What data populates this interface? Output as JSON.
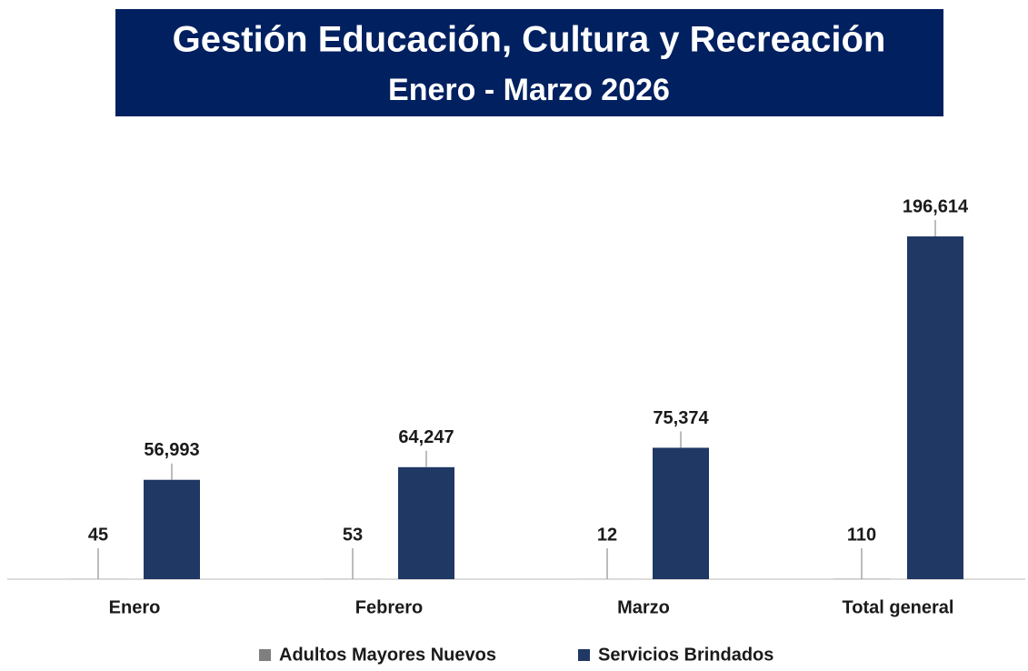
{
  "chart_data": {
    "type": "bar",
    "title": "Gestión Educación, Cultura y Recreación",
    "subtitle": "Enero - Marzo 2026",
    "categories": [
      "Enero",
      "Febrero",
      "Marzo",
      "Total general"
    ],
    "series": [
      {
        "name": "Adultos Mayores Nuevos",
        "color": "#7f7f7f",
        "values": [
          45,
          53,
          12,
          110
        ]
      },
      {
        "name": "Servicios Brindados",
        "color": "#203864",
        "values": [
          56993,
          64247,
          75374,
          196614
        ],
        "value_labels": [
          "56,993",
          "64,247",
          "75,374",
          "196,614"
        ]
      }
    ],
    "legend": "bottom"
  }
}
